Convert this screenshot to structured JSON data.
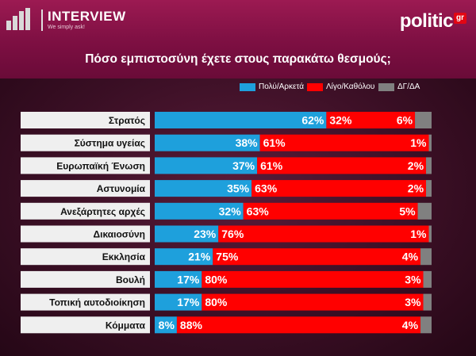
{
  "header": {
    "brand_name": "INTERVIEW",
    "brand_tagline": "We simply ask!",
    "logo_text": "politic",
    "logo_suffix": "gr",
    "title": "Πόσο εμπιστοσύνη έχετε στους παρακάτω θεσμούς;"
  },
  "colors": {
    "header": "#8a1448",
    "background": "#3a0f24",
    "series_1": "#1ea0dc",
    "series_2": "#ff0000",
    "series_3": "#808080",
    "label_panel": "#efefef"
  },
  "chart_data": {
    "type": "bar",
    "orientation": "horizontal",
    "stacked": true,
    "title": "Πόσο εμπιστοσύνη έχετε στους παρακάτω θεσμούς;",
    "categories": [
      "Στρατός",
      "Σύστημα υγείας",
      "Ευρωπαϊκή Ένωση",
      "Αστυνομία",
      "Ανεξάρτητες αρχές",
      "Δικαιοσύνη",
      "Εκκλησία",
      "Βουλή",
      "Τοπική αυτοδιοίκηση",
      "Κόμματα"
    ],
    "series": [
      {
        "name": "Πολύ/Αρκετά",
        "values": [
          62,
          38,
          37,
          35,
          32,
          23,
          21,
          17,
          17,
          8
        ]
      },
      {
        "name": "Λίγο/Καθόλου",
        "values": [
          32,
          61,
          61,
          63,
          63,
          76,
          75,
          80,
          80,
          88
        ]
      },
      {
        "name": "ΔΓ/ΔΑ",
        "values": [
          6,
          1,
          2,
          2,
          5,
          1,
          4,
          3,
          3,
          4
        ]
      }
    ],
    "value_suffix": "%",
    "legend_position": "top-right",
    "xlim": [
      0,
      100
    ]
  }
}
